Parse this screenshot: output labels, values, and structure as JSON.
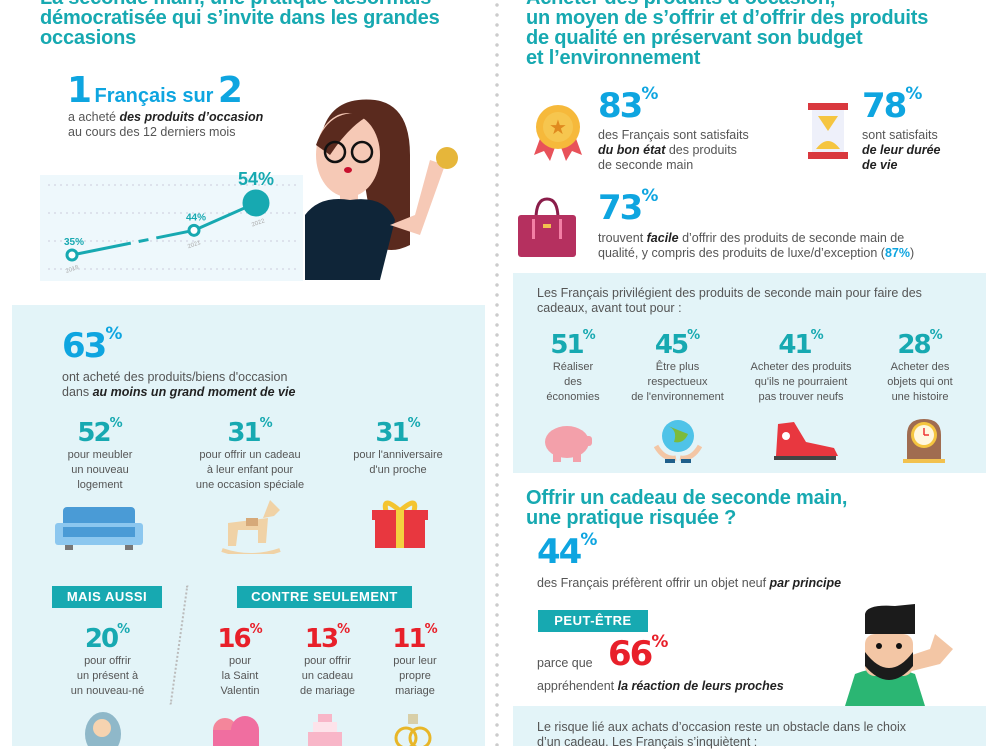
{
  "left": {
    "title": [
      "La seconde main, une pratique désormais",
      "démocratisée qui s’invite dans les grandes",
      "occasions"
    ],
    "stat": {
      "num1": "1",
      "mid": "Français sur",
      "num2": "2",
      "line1_a": "a acheté ",
      "line1_b": "des produits d’occasion",
      "line2": "au cours des 12 derniers mois"
    },
    "chart_data": {
      "type": "line",
      "x": [
        "2018",
        "2021",
        "2022"
      ],
      "values": [
        35,
        44,
        54
      ],
      "labels": [
        "35%",
        "44%",
        "54%"
      ],
      "ylabel": "",
      "xlabel": ""
    },
    "panel": {
      "main_num": "63",
      "main_text_a": "ont acheté des produits/biens d'occasion",
      "main_text_b": "dans ",
      "main_text_c": "au moins un grand moment de vie",
      "items": [
        {
          "num": "52",
          "text": [
            "pour meubler",
            "un nouveau",
            "logement"
          ],
          "icon": "sofa-icon"
        },
        {
          "num": "31",
          "text": [
            "pour offrir un cadeau",
            "à leur enfant pour",
            "une occasion spéciale"
          ],
          "icon": "rocking-horse-icon"
        },
        {
          "num": "31",
          "text": [
            "pour l'anniversaire",
            "d'un proche"
          ],
          "icon": "gift-icon"
        }
      ],
      "tag_also": "MAIS AUSSI",
      "also": {
        "num": "20",
        "text": [
          "pour offrir",
          "un présent à",
          "un nouveau-né"
        ]
      },
      "tag_only": "CONTRE SEULEMENT",
      "only": [
        {
          "num": "16",
          "text": [
            "pour",
            "la Saint",
            "Valentin"
          ]
        },
        {
          "num": "13",
          "text": [
            "pour offrir",
            "un cadeau",
            "de mariage"
          ]
        },
        {
          "num": "11",
          "text": [
            "pour leur",
            "propre",
            "mariage"
          ]
        }
      ]
    }
  },
  "right": {
    "title": [
      "Acheter des produits d’occasion,",
      "un moyen de s’offrir et d’offrir des produits",
      "de qualité en préservant son budget",
      "et l’environnement"
    ],
    "s83": {
      "num": "83",
      "a": "des Français sont satisfaits",
      "b": "du bon état",
      "c": " des produits",
      "d": "de seconde main"
    },
    "s78": {
      "num": "78",
      "a": "sont satisfaits",
      "b": "de leur durée",
      "c": "de vie"
    },
    "s73": {
      "num": "73",
      "a": "trouvent ",
      "b": "facile",
      "c": " d’offrir des produits de seconde main de",
      "d": "qualité, y compris des produits de luxe/d’exception (",
      "e": "87%",
      "f": ")"
    },
    "panel": {
      "intro": "Les Français privilégient des produits de seconde main pour faire des cadeaux, avant tout pour :",
      "items": [
        {
          "num": "51",
          "text": [
            "Réaliser",
            "des",
            "économies"
          ]
        },
        {
          "num": "45",
          "text": [
            "Être plus",
            "respectueux",
            "de l'environnement"
          ]
        },
        {
          "num": "41",
          "text": [
            "Acheter des produits",
            "qu'ils ne pourraient",
            "pas trouver neufs"
          ]
        },
        {
          "num": "28",
          "text": [
            "Acheter des",
            "objets qui ont",
            "une histoire"
          ]
        }
      ]
    },
    "risk": {
      "title": [
        "Offrir un cadeau de seconde main,",
        "une pratique risquée ?"
      ],
      "num44": "44",
      "t44a": "des Français préfèrent offrir un objet neuf ",
      "t44b": "par principe",
      "tag": "PEUT-ÊTRE",
      "because": "parce que",
      "num66": "66",
      "t66a": "appréhendent ",
      "t66b": "la réaction de leurs proches",
      "box": [
        "Le risque lié aux achats d’occasion reste un obstacle dans le choix",
        "d’un cadeau. Les Français s’inquiètent :"
      ]
    }
  },
  "pct": "%"
}
